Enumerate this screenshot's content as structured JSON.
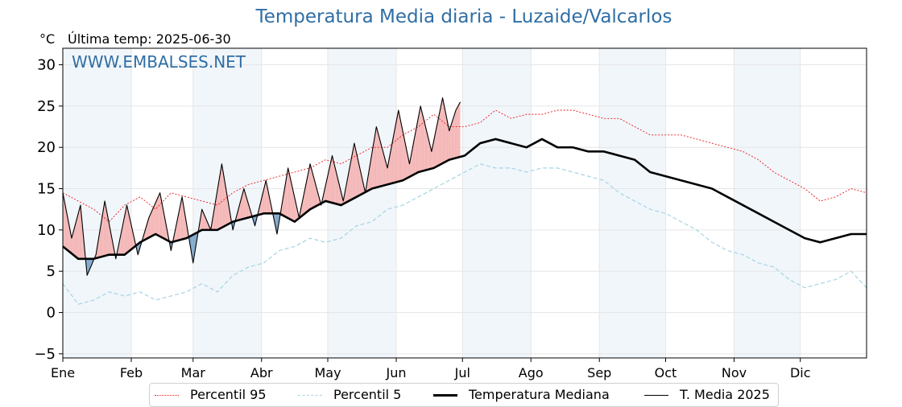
{
  "chart_data": {
    "type": "line",
    "title": "Temperatura Media diaria - Luzaide/Valcarlos",
    "ylabel": "°C",
    "subtitle": "Última temp: 2025-06-30",
    "watermark": "WWW.EMBALSES.NET",
    "ylim": [
      -5.5,
      32
    ],
    "yticks": [
      -5,
      0,
      5,
      10,
      15,
      20,
      25,
      30
    ],
    "ytick_labels": [
      "−5",
      "0",
      "5",
      "10",
      "15",
      "20",
      "25",
      "30"
    ],
    "month_labels": [
      "Ene",
      "Feb",
      "Mar",
      "Abr",
      "May",
      "Jun",
      "Jul",
      "Ago",
      "Sep",
      "Oct",
      "Nov",
      "Dic"
    ],
    "grid": true,
    "legend_position": "bottom",
    "x_unit": "day of year",
    "series": [
      {
        "name": "Percentil 95",
        "color": "#e8191c",
        "style": "dotted",
        "x": [
          1,
          8,
          15,
          22,
          29,
          36,
          43,
          50,
          57,
          64,
          71,
          78,
          85,
          92,
          99,
          106,
          113,
          120,
          127,
          134,
          141,
          148,
          155,
          162,
          169,
          176,
          183,
          190,
          197,
          204,
          211,
          218,
          225,
          232,
          239,
          246,
          253,
          260,
          267,
          274,
          281,
          288,
          295,
          302,
          309,
          316,
          323,
          330,
          337,
          344,
          351,
          358,
          365
        ],
        "values": [
          14.5,
          13.5,
          12.5,
          11.0,
          13.0,
          14.0,
          12.5,
          14.5,
          14.0,
          13.5,
          13.0,
          14.5,
          15.5,
          16.0,
          16.5,
          17.0,
          17.5,
          18.5,
          18.0,
          19.0,
          20.0,
          20.0,
          21.5,
          22.5,
          24.0,
          22.5,
          22.5,
          23.0,
          24.5,
          23.5,
          24.0,
          24.0,
          24.5,
          24.5,
          24.0,
          23.5,
          23.5,
          22.5,
          21.5,
          21.5,
          21.5,
          21.0,
          20.5,
          20.0,
          19.5,
          18.5,
          17.0,
          16.0,
          15.0,
          13.5,
          14.0,
          15.0,
          14.5
        ]
      },
      {
        "name": "Percentil 5",
        "color": "#a7d3e4",
        "style": "dashed",
        "x": [
          1,
          8,
          15,
          22,
          29,
          36,
          43,
          50,
          57,
          64,
          71,
          78,
          85,
          92,
          99,
          106,
          113,
          120,
          127,
          134,
          141,
          148,
          155,
          162,
          169,
          176,
          183,
          190,
          197,
          204,
          211,
          218,
          225,
          232,
          239,
          246,
          253,
          260,
          267,
          274,
          281,
          288,
          295,
          302,
          309,
          316,
          323,
          330,
          337,
          344,
          351,
          358,
          365
        ],
        "values": [
          3.5,
          1.0,
          1.5,
          2.5,
          2.0,
          2.5,
          1.5,
          2.0,
          2.5,
          3.5,
          2.5,
          4.5,
          5.5,
          6.0,
          7.5,
          8.0,
          9.0,
          8.5,
          9.0,
          10.5,
          11.0,
          12.5,
          13.0,
          14.0,
          15.0,
          16.0,
          17.0,
          18.0,
          17.5,
          17.5,
          17.0,
          17.5,
          17.5,
          17.0,
          16.5,
          16.0,
          14.5,
          13.5,
          12.5,
          12.0,
          11.0,
          10.0,
          8.5,
          7.5,
          7.0,
          6.0,
          5.5,
          4.0,
          3.0,
          3.5,
          4.0,
          5.0,
          3.0
        ]
      },
      {
        "name": "Temperatura Mediana",
        "color": "#000000",
        "style": "solid-thick",
        "x": [
          1,
          8,
          15,
          22,
          29,
          36,
          43,
          50,
          57,
          64,
          71,
          78,
          85,
          92,
          99,
          106,
          113,
          120,
          127,
          134,
          141,
          148,
          155,
          162,
          169,
          176,
          183,
          190,
          197,
          204,
          211,
          218,
          225,
          232,
          239,
          246,
          253,
          260,
          267,
          274,
          281,
          288,
          295,
          302,
          309,
          316,
          323,
          330,
          337,
          344,
          351,
          358,
          365
        ],
        "values": [
          8.0,
          6.5,
          6.5,
          7.0,
          7.0,
          8.5,
          9.5,
          8.5,
          9.0,
          10.0,
          10.0,
          11.0,
          11.5,
          12.0,
          12.0,
          11.0,
          12.5,
          13.5,
          13.0,
          14.0,
          15.0,
          15.5,
          16.0,
          17.0,
          17.5,
          18.5,
          19.0,
          20.5,
          21.0,
          20.5,
          20.0,
          21.0,
          20.0,
          20.0,
          19.5,
          19.5,
          19.0,
          18.5,
          17.0,
          16.5,
          16.0,
          15.5,
          15.0,
          14.0,
          13.0,
          12.0,
          11.0,
          10.0,
          9.0,
          8.5,
          9.0,
          9.5,
          9.5
        ]
      },
      {
        "name": "T. Media 2025",
        "color": "#000000",
        "style": "solid",
        "x": [
          1,
          5,
          9,
          12,
          16,
          20,
          25,
          30,
          35,
          40,
          45,
          50,
          55,
          60,
          64,
          68,
          73,
          78,
          83,
          88,
          93,
          98,
          103,
          108,
          113,
          118,
          123,
          128,
          133,
          138,
          143,
          148,
          153,
          158,
          163,
          168,
          173,
          176,
          179,
          181
        ],
        "values": [
          14.5,
          9.0,
          13.0,
          4.5,
          7.0,
          13.5,
          6.5,
          13.0,
          7.0,
          11.5,
          14.5,
          7.5,
          14.0,
          6.0,
          12.5,
          10.0,
          18.0,
          10.0,
          15.0,
          10.5,
          16.0,
          9.5,
          17.5,
          11.5,
          18.0,
          13.0,
          19.0,
          13.5,
          20.5,
          14.5,
          22.5,
          17.5,
          24.5,
          18.0,
          25.0,
          19.5,
          26.0,
          22.0,
          24.5,
          25.5
        ]
      }
    ]
  }
}
